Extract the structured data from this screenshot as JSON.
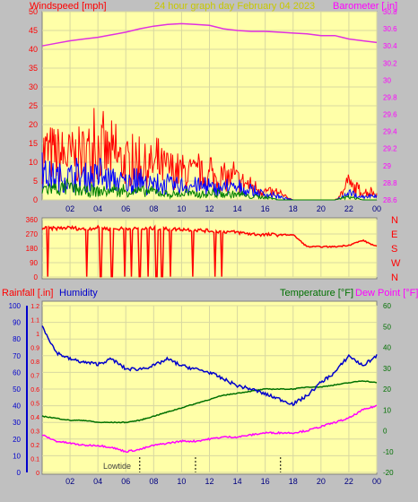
{
  "header": {
    "left": "Windspeed [mph]",
    "center": "24 hour graph day   February 04 2023",
    "right": "Barometer [.in]"
  },
  "colors": {
    "background": "#c0c0c0",
    "plot_bg": "#ffffa8",
    "grid": "#d8d8a0",
    "wind_text": "#ff0000",
    "baro_text": "#ff00ff",
    "header_text": "#c8c800",
    "gust": "#ff0000",
    "avg": "#0000ff",
    "low": "#008000",
    "baro_line": "#e030e0",
    "humidity": "#0000cc",
    "temperature": "#007000",
    "dewpoint": "#ff00ff",
    "tide": "#000000"
  },
  "bottom_labels": {
    "rainfall": "Rainfall [.in]",
    "humidity": "Humidity",
    "temperature": "Temperature [°F]",
    "dewpoint": "Dew Point [°F]",
    "lowtide": "Lowtide"
  },
  "chart_data": [
    {
      "type": "line",
      "chart": "wind-baro",
      "x_ticks": [
        "02",
        "04",
        "06",
        "08",
        "10",
        "12",
        "14",
        "16",
        "18",
        "20",
        "22",
        "00"
      ],
      "ylim_left": [
        0,
        50
      ],
      "yticks_left": [
        0,
        5,
        10,
        15,
        20,
        25,
        30,
        35,
        40,
        45,
        50
      ],
      "ylim_right": [
        28.6,
        30.8
      ],
      "yticks_right": [
        "28.6",
        "28.8",
        "29",
        "29.2",
        "29.4",
        "29.6",
        "29.8",
        "30",
        "30.2",
        "30.4",
        "30.6",
        "30.8"
      ],
      "grid": true,
      "barometer": {
        "x": [
          0,
          1,
          2,
          3,
          4,
          5,
          6,
          7,
          8,
          9,
          10,
          11,
          12,
          13,
          14,
          15,
          16,
          17,
          18,
          19,
          20,
          21,
          22,
          23,
          24
        ],
        "y": [
          30.4,
          30.43,
          30.46,
          30.48,
          30.5,
          30.53,
          30.56,
          30.6,
          30.63,
          30.65,
          30.66,
          30.65,
          30.64,
          30.6,
          30.58,
          30.57,
          30.57,
          30.56,
          30.55,
          30.54,
          30.52,
          30.52,
          30.48,
          30.46,
          30.44
        ]
      },
      "gust_envelope": {
        "x": [
          0,
          1,
          2,
          3,
          4,
          5,
          6,
          7,
          8,
          9,
          10,
          11,
          12,
          13,
          14,
          15,
          16,
          17,
          18,
          19,
          20,
          21,
          22,
          23,
          24
        ],
        "y": [
          17,
          16,
          15,
          16,
          18,
          15,
          13,
          12,
          12,
          11,
          10,
          9,
          8,
          8,
          7,
          5,
          3,
          2,
          0,
          0,
          0,
          0,
          5,
          3,
          2
        ]
      },
      "avg_envelope": {
        "x": [
          0,
          1,
          2,
          3,
          4,
          5,
          6,
          7,
          8,
          9,
          10,
          11,
          12,
          13,
          14,
          15,
          16,
          17,
          18,
          19,
          20,
          21,
          22,
          23,
          24
        ],
        "y": [
          9,
          8,
          8,
          8,
          8,
          7,
          6,
          6,
          5,
          5,
          5,
          5,
          4,
          4,
          4,
          3,
          2,
          1,
          0,
          0,
          0,
          0,
          2,
          1,
          1
        ]
      },
      "low_envelope": {
        "x": [
          0,
          1,
          2,
          3,
          4,
          5,
          6,
          7,
          8,
          9,
          10,
          11,
          12,
          13,
          14,
          15,
          16,
          17,
          18,
          19,
          20,
          21,
          22,
          23,
          24
        ],
        "y": [
          4,
          4,
          4,
          3,
          3,
          3,
          3,
          3,
          3,
          2,
          2,
          2,
          2,
          2,
          2,
          1,
          1,
          0,
          0,
          0,
          0,
          0,
          1,
          0,
          0
        ]
      }
    },
    {
      "type": "line",
      "chart": "wind-direction",
      "yticks_left": [
        0,
        90,
        180,
        270,
        360
      ],
      "right_labels": [
        "N",
        "W",
        "S",
        "E",
        "N"
      ],
      "x": [
        0,
        1,
        2,
        3,
        4,
        5,
        6,
        7,
        8,
        9,
        10,
        11,
        12,
        13,
        14,
        15,
        16,
        17,
        18,
        19,
        20,
        21,
        22,
        23,
        24
      ],
      "y": [
        305,
        305,
        310,
        300,
        310,
        300,
        305,
        300,
        305,
        300,
        300,
        295,
        290,
        285,
        280,
        270,
        265,
        265,
        265,
        190,
        190,
        190,
        200,
        230,
        190
      ]
    },
    {
      "type": "line",
      "chart": "temp-humidity",
      "yticks_left": [
        0,
        10,
        20,
        30,
        40,
        50,
        60,
        70,
        80,
        90,
        100
      ],
      "yticks_rain": [
        "0",
        "0.1",
        "0.2",
        "0.3",
        "0.4",
        "0.5",
        "0.6",
        "0.7",
        "0.8",
        "0.9",
        "1",
        "1.1",
        "1.2"
      ],
      "yticks_right": [
        -20,
        -10,
        0,
        10,
        20,
        30,
        40,
        50,
        60
      ],
      "humidity": {
        "x": [
          0,
          1,
          2,
          3,
          4,
          5,
          6,
          7,
          8,
          9,
          10,
          11,
          12,
          13,
          14,
          15,
          16,
          17,
          18,
          19,
          20,
          21,
          22,
          23,
          24
        ],
        "y": [
          88,
          72,
          68,
          66,
          65,
          68,
          62,
          62,
          64,
          68,
          64,
          62,
          60,
          56,
          52,
          50,
          47,
          44,
          41,
          46,
          54,
          60,
          70,
          64,
          70
        ]
      },
      "temperature": {
        "x": [
          0,
          1,
          2,
          3,
          4,
          5,
          6,
          7,
          8,
          9,
          10,
          11,
          12,
          13,
          14,
          15,
          16,
          17,
          18,
          19,
          20,
          21,
          22,
          23,
          24
        ],
        "y": [
          7,
          6,
          5,
          5,
          4,
          4,
          4,
          5,
          7,
          9,
          11,
          13,
          15,
          17,
          18,
          19,
          20,
          20,
          20,
          21,
          21,
          22,
          23,
          24,
          23
        ]
      },
      "dewpoint": {
        "x": [
          0,
          1,
          2,
          3,
          4,
          5,
          6,
          7,
          8,
          9,
          10,
          11,
          12,
          13,
          14,
          15,
          16,
          17,
          18,
          19,
          20,
          21,
          22,
          23,
          24
        ],
        "y": [
          -2,
          -5,
          -6,
          -7,
          -7,
          -8,
          -10,
          -9,
          -7,
          -6,
          -5,
          -5,
          -4,
          -3,
          -3,
          -2,
          -1,
          -1,
          -1,
          0,
          2,
          4,
          6,
          10,
          12
        ]
      },
      "tide_marks_x": [
        7.0,
        11.0,
        17.1
      ]
    }
  ]
}
